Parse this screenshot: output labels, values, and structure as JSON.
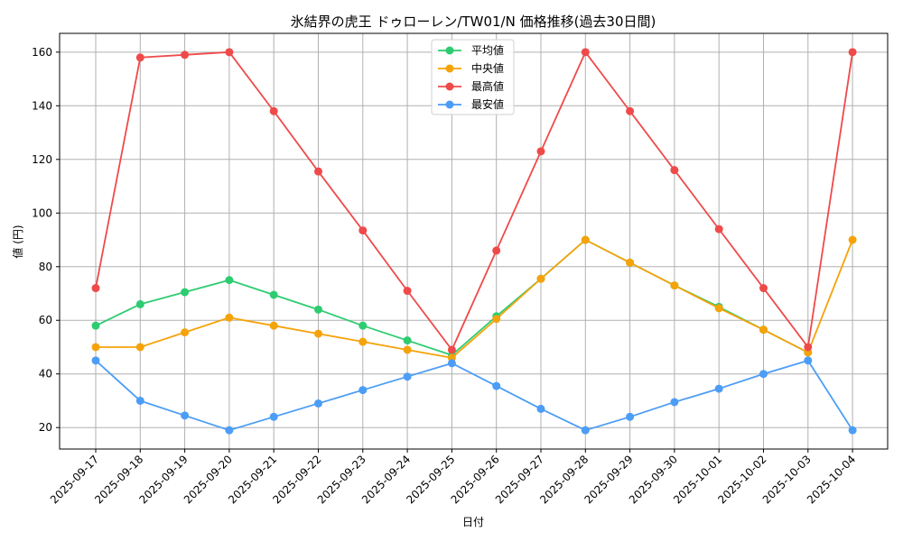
{
  "chart_data": {
    "type": "line",
    "title": "氷結界の虎王 ドゥローレン/TW01/N 価格推移(過去30日間)",
    "xlabel": "日付",
    "ylabel": "値 (円)",
    "ylim": [
      12,
      167
    ],
    "yticks": [
      20,
      40,
      60,
      80,
      100,
      120,
      140,
      160
    ],
    "grid": true,
    "legend_position": "top-center",
    "categories": [
      "2025-09-17",
      "2025-09-18",
      "2025-09-19",
      "2025-09-20",
      "2025-09-21",
      "2025-09-22",
      "2025-09-23",
      "2025-09-24",
      "2025-09-25",
      "2025-09-26",
      "2025-09-27",
      "2025-09-28",
      "2025-09-29",
      "2025-09-30",
      "2025-10-01",
      "2025-10-02",
      "2025-10-03",
      "2025-10-04"
    ],
    "series": [
      {
        "name": "平均値",
        "color": "#2ecc71",
        "values": [
          58,
          66,
          70.5,
          75,
          69.5,
          64,
          58,
          52.5,
          47,
          61.5,
          75.5,
          90,
          81.5,
          73,
          65,
          56.5,
          48,
          null
        ]
      },
      {
        "name": "中央値",
        "color": "#f5a30b",
        "values": [
          50,
          50,
          55.5,
          61,
          58,
          55,
          52,
          49,
          46,
          60.5,
          75.5,
          90,
          81.5,
          73,
          64.5,
          56.5,
          48,
          90
        ]
      },
      {
        "name": "最高値",
        "color": "#ef4a4a",
        "values": [
          72,
          158,
          159,
          160,
          138,
          115.5,
          93.5,
          71,
          49,
          86,
          123,
          160,
          138,
          116,
          94,
          72,
          50,
          160
        ]
      },
      {
        "name": "最安値",
        "color": "#4c9df6",
        "values": [
          45,
          30,
          24.5,
          19,
          24,
          29,
          34,
          39,
          44,
          35.5,
          27,
          19,
          24,
          29.5,
          34.5,
          40,
          45,
          19
        ]
      }
    ]
  }
}
